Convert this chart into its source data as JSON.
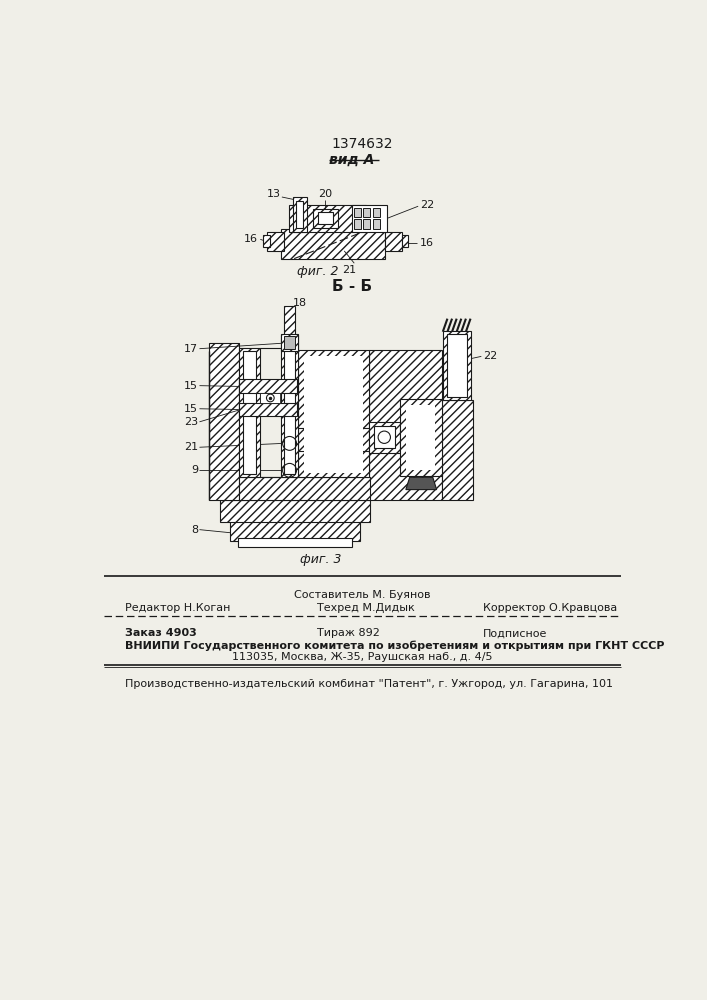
{
  "patent_number": "1374632",
  "fig2_label": "вид А",
  "fig2_caption": "фиг. 2",
  "fig3_label": "Б - Б",
  "fig3_caption": "фиг. 3",
  "footer_line1_col1": "Редактор Н.Коган",
  "footer_line1_col2": "Составитель М. Буянов",
  "footer_line1_col3": "Техред М.Дидык",
  "footer_line1_col4": "Корректор О.Кравцова",
  "footer_line2_col1": "Заказ 4903",
  "footer_line2_col2": "Тираж 892",
  "footer_line2_col3": "Подписное",
  "footer_line3": "ВНИИПИ Государственного комитета по изобретениям и открытиям при ГКНТ СССР",
  "footer_line4": "113035, Москва, Ж-35, Раушская наб., д. 4/5",
  "footer_line5": "Производственно-издательский комбинат \"Патент\", г. Ужгород, ул. Гагарина, 101",
  "bg_color": "#f0efe8",
  "line_color": "#1a1a1a"
}
